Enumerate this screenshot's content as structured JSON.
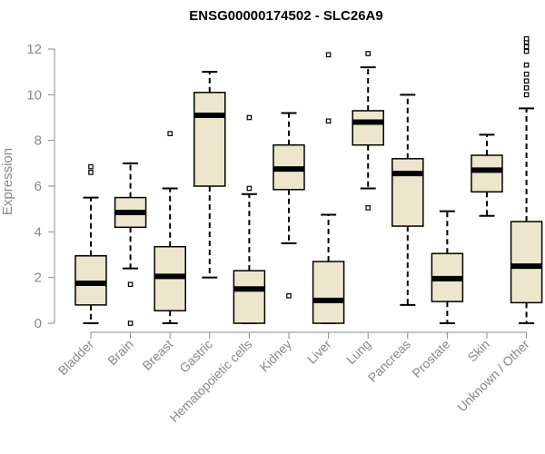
{
  "chart_data": {
    "type": "boxplot",
    "title": "ENSG00000174502 - SLC26A9",
    "xlabel": "",
    "ylabel": "Expression",
    "ylim": [
      0,
      12.4
    ],
    "yticks": [
      0,
      2,
      4,
      6,
      8,
      10,
      12
    ],
    "box_color": "#EDE6CC",
    "categories": [
      "Bladder",
      "Brain",
      "Breast",
      "Gastric",
      "Hematopoietic cells",
      "Kidney",
      "Liver",
      "Lung",
      "Pancreas",
      "Prostate",
      "Skin",
      "Unknown / Other"
    ],
    "boxes": [
      {
        "name": "Bladder",
        "whisker_low": 0.0,
        "q1": 0.8,
        "median": 1.75,
        "q3": 2.95,
        "whisker_high": 5.5,
        "outliers": [
          6.6,
          6.85
        ]
      },
      {
        "name": "Brain",
        "whisker_low": 2.4,
        "q1": 4.2,
        "median": 4.85,
        "q3": 5.5,
        "whisker_high": 7.0,
        "outliers": [
          0.0,
          1.7
        ]
      },
      {
        "name": "Breast",
        "whisker_low": 0.0,
        "q1": 0.55,
        "median": 2.05,
        "q3": 3.35,
        "whisker_high": 5.9,
        "outliers": [
          8.3
        ]
      },
      {
        "name": "Gastric",
        "whisker_low": 2.0,
        "q1": 6.0,
        "median": 9.1,
        "q3": 10.1,
        "whisker_high": 11.0,
        "outliers": []
      },
      {
        "name": "Hematopoietic cells",
        "whisker_low": 0.0,
        "q1": 0.0,
        "median": 1.5,
        "q3": 2.3,
        "whisker_high": 5.65,
        "outliers": [
          5.9,
          9.0
        ]
      },
      {
        "name": "Kidney",
        "whisker_low": 3.5,
        "q1": 5.85,
        "median": 6.75,
        "q3": 7.8,
        "whisker_high": 9.2,
        "outliers": [
          1.2
        ]
      },
      {
        "name": "Liver",
        "whisker_low": 0.0,
        "q1": 0.0,
        "median": 1.0,
        "q3": 2.7,
        "whisker_high": 4.75,
        "outliers": [
          8.85,
          11.75
        ]
      },
      {
        "name": "Lung",
        "whisker_low": 5.9,
        "q1": 7.8,
        "median": 8.8,
        "q3": 9.3,
        "whisker_high": 11.2,
        "outliers": [
          5.05,
          11.8
        ]
      },
      {
        "name": "Pancreas",
        "whisker_low": 0.8,
        "q1": 4.25,
        "median": 6.55,
        "q3": 7.2,
        "whisker_high": 10.0,
        "outliers": []
      },
      {
        "name": "Prostate",
        "whisker_low": 0.0,
        "q1": 0.95,
        "median": 1.95,
        "q3": 3.05,
        "whisker_high": 4.9,
        "outliers": []
      },
      {
        "name": "Skin",
        "whisker_low": 4.7,
        "q1": 5.75,
        "median": 6.7,
        "q3": 7.35,
        "whisker_high": 8.25,
        "outliers": []
      },
      {
        "name": "Unknown / Other",
        "whisker_low": 0.0,
        "q1": 0.9,
        "median": 2.5,
        "q3": 4.45,
        "whisker_high": 9.4,
        "outliers": [
          10.0,
          10.3,
          10.6,
          10.9,
          11.3,
          11.9,
          12.1,
          12.3,
          12.45
        ]
      }
    ]
  }
}
